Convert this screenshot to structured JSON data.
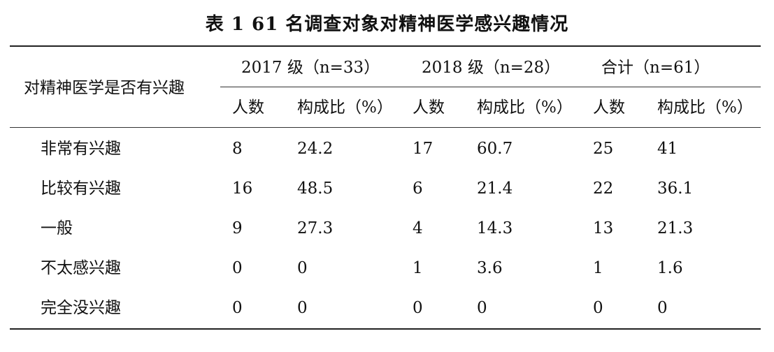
{
  "title": "表 1  61 名调查对象对精神医学感兴趣情况",
  "header": {
    "row_label": "对精神医学是否有兴趣",
    "groups": [
      "2017 级（n=33）",
      "2018 级（n=28）",
      "合计（n=61）"
    ],
    "subcolumns": [
      "人数",
      "构成比（%）",
      "人数",
      "构成比（%）",
      "人数",
      "构成比（%）"
    ]
  },
  "rows": [
    {
      "label": "非常有兴趣",
      "values": [
        "8",
        "24.2",
        "17",
        "60.7",
        "25",
        "41"
      ]
    },
    {
      "label": "比较有兴趣",
      "values": [
        "16",
        "48.5",
        "6",
        "21.4",
        "22",
        "36.1"
      ]
    },
    {
      "label": "一般",
      "values": [
        "9",
        "27.3",
        "4",
        "14.3",
        "13",
        "21.3"
      ]
    },
    {
      "label": "不太感兴趣",
      "values": [
        "0",
        "0",
        "1",
        "3.6",
        "1",
        "1.6"
      ]
    },
    {
      "label": "完全没兴趣",
      "values": [
        "0",
        "0",
        "0",
        "0",
        "0",
        "0"
      ]
    }
  ]
}
